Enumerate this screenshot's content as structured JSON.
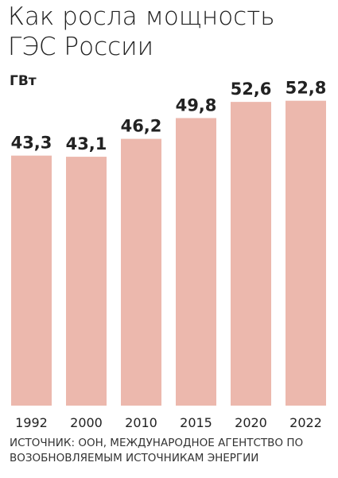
{
  "chart_data": {
    "type": "bar",
    "title": "Как росла мощность ГЭС России",
    "y_label": "ГВт",
    "categories": [
      "1992",
      "2000",
      "2010",
      "2015",
      "2020",
      "2022"
    ],
    "values": [
      43.3,
      43.1,
      46.2,
      49.8,
      52.6,
      52.8
    ],
    "value_labels": [
      "43,3",
      "43,1",
      "46,2",
      "49,8",
      "52,6",
      "52,8"
    ],
    "color": "#ecb8ad",
    "source": "ИСТОЧНИК: ООН, МЕЖДУНАРОДНОЕ АГЕНТСТВО ПО ВОЗОБНОВЛЯЕМЫМ ИСТОЧНИКАМ ЭНЕРГИИ"
  }
}
